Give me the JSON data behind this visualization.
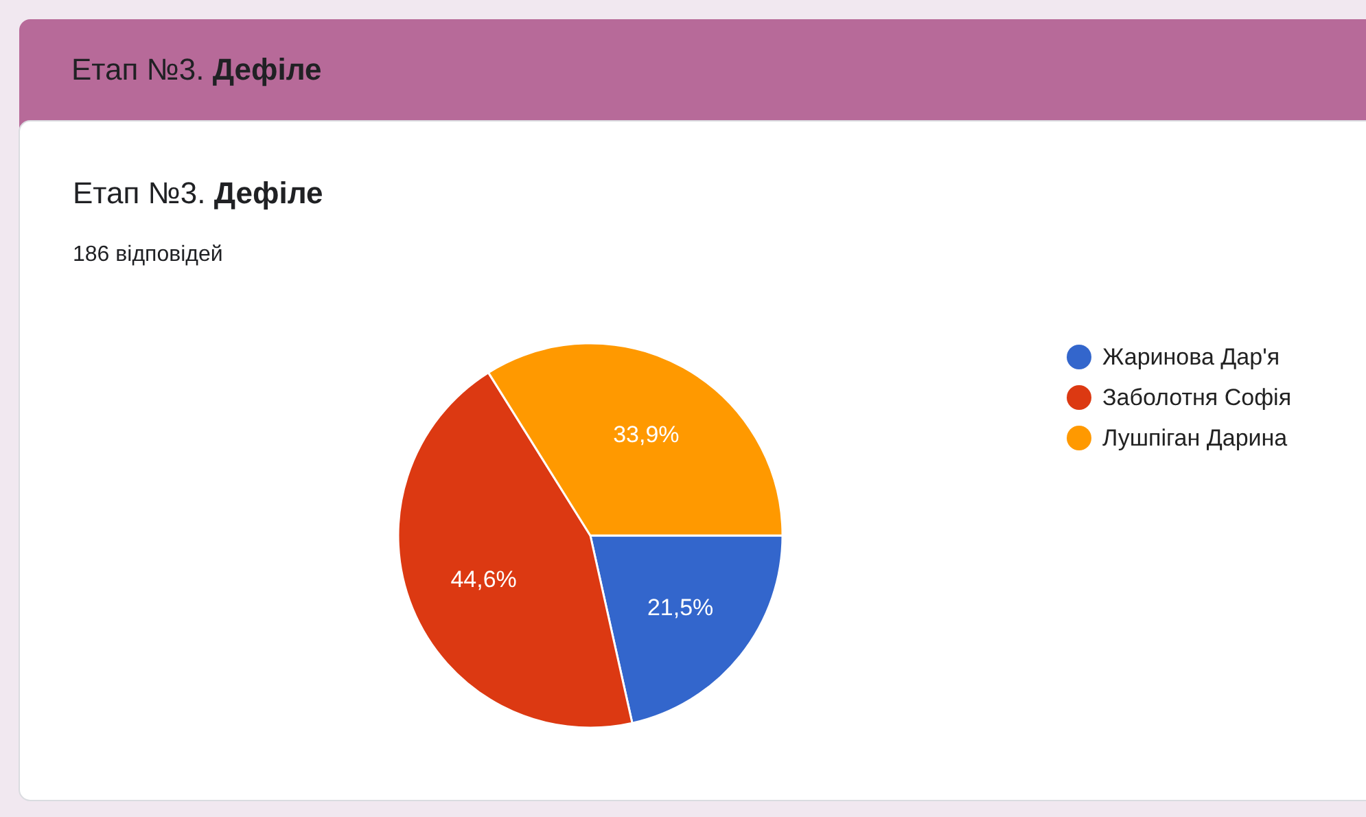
{
  "chart_data": {
    "type": "pie",
    "title": "Етап №3. Дефіле",
    "subtitle": "186 відповідей",
    "annotations": [
      "Етап №3. Дефіле"
    ],
    "categories": [
      "Жаринова Дар'я",
      "Заболотня Софія",
      "Лушпіган Дарина"
    ],
    "values": [
      21.5,
      44.6,
      33.9
    ],
    "colors": [
      "#3366cc",
      "#dc3912",
      "#ff9900"
    ],
    "value_labels": [
      "21,5%",
      "44,6%",
      "33,9%"
    ],
    "legend": "right"
  }
}
